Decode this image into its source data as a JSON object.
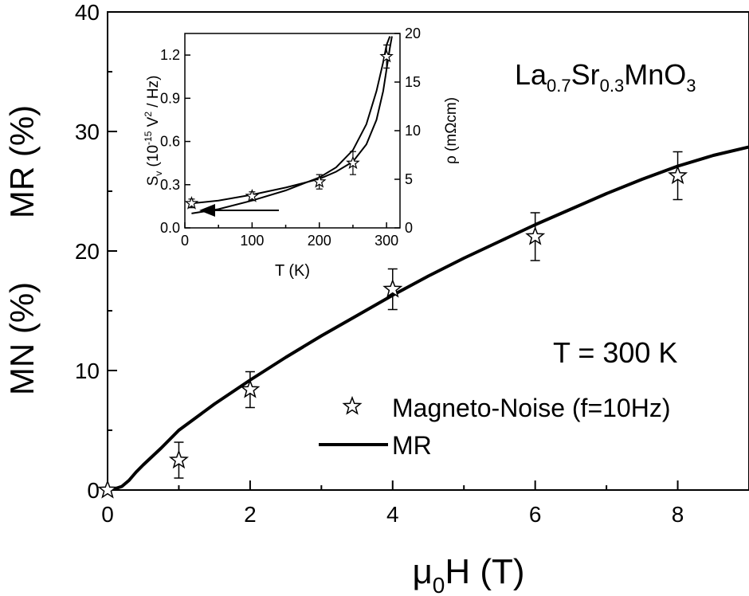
{
  "chart_data": [
    {
      "type": "scatter",
      "title": "",
      "xlabel": "μ0H (T)",
      "ylabel_top": "MR (%)",
      "ylabel_bottom": "MN (%)",
      "xlim": [
        0,
        9
      ],
      "ylim": [
        0,
        40
      ],
      "x_ticks": [
        0,
        2,
        4,
        6,
        8
      ],
      "y_ticks": [
        0,
        10,
        20,
        30,
        40
      ],
      "compound": "La0.7Sr0.3MnO3",
      "condition": "T = 300 K",
      "legend_position": "lower-right",
      "series": [
        {
          "name": "Magneto-Noise (f=10Hz)",
          "marker": "star",
          "x": [
            0,
            1,
            2,
            4,
            6,
            8
          ],
          "y": [
            0,
            2.5,
            8.4,
            16.8,
            21.2,
            26.3
          ],
          "error": [
            0,
            1.5,
            1.5,
            1.7,
            2.0,
            2.0
          ]
        },
        {
          "name": "MR",
          "marker": "line",
          "x": [
            0,
            0.1,
            0.2,
            0.3,
            0.4,
            0.5,
            0.75,
            1,
            1.5,
            2,
            2.5,
            3,
            3.5,
            4,
            4.5,
            5,
            5.5,
            6,
            6.5,
            7,
            7.5,
            8,
            8.5,
            9
          ],
          "y": [
            0,
            0.1,
            0.3,
            0.8,
            1.5,
            2.1,
            3.5,
            5.0,
            7.2,
            9.2,
            11.1,
            12.9,
            14.6,
            16.3,
            17.9,
            19.4,
            20.8,
            22.2,
            23.5,
            24.8,
            26.0,
            27.1,
            28.0,
            28.7
          ]
        }
      ]
    },
    {
      "type": "scatter",
      "title": "",
      "xlabel": "T (K)",
      "ylabel_left": "Sv (10-15 V2 / Hz)",
      "ylabel_right": "ρ (mΩcm)",
      "xlim": [
        0,
        320
      ],
      "ylim_left": [
        0,
        1.35
      ],
      "ylim_right": [
        0,
        20
      ],
      "x_ticks": [
        0,
        100,
        200,
        300
      ],
      "y_ticks_left": [
        0.0,
        0.3,
        0.6,
        0.9,
        1.2
      ],
      "y_ticks_right": [
        0,
        5,
        10,
        15,
        20
      ],
      "arrow": "points to left axis",
      "series": [
        {
          "name": "",
          "marker": "star",
          "axis": "left",
          "x": [
            10,
            100,
            200,
            250,
            300
          ],
          "y": [
            0.17,
            0.22,
            0.32,
            0.45,
            1.19
          ],
          "error": [
            0.03,
            0.03,
            0.05,
            0.08,
            0.08
          ]
        },
        {
          "name": "",
          "marker": "line",
          "axis": "left",
          "x": [
            10,
            50,
            100,
            150,
            200,
            225,
            250,
            270,
            285,
            295,
            300,
            305,
            308
          ],
          "y": [
            0.17,
            0.19,
            0.23,
            0.28,
            0.34,
            0.39,
            0.46,
            0.58,
            0.75,
            0.95,
            1.1,
            1.25,
            1.33
          ]
        },
        {
          "name": "",
          "marker": "line",
          "axis": "left",
          "x": [
            10,
            50,
            100,
            150,
            200,
            225,
            250,
            270,
            285,
            295,
            300,
            305
          ],
          "y": [
            0.1,
            0.13,
            0.19,
            0.26,
            0.35,
            0.42,
            0.54,
            0.72,
            0.95,
            1.15,
            1.27,
            1.33
          ]
        }
      ]
    }
  ]
}
